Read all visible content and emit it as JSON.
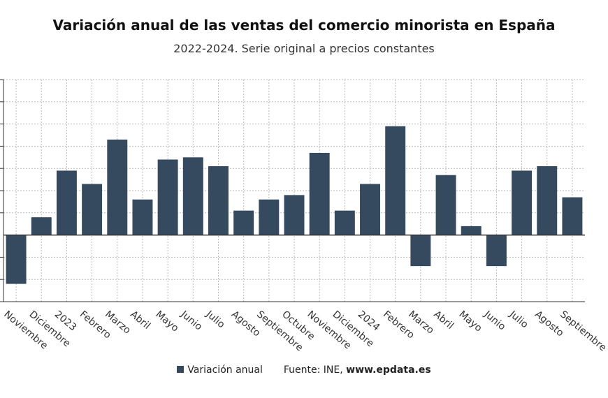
{
  "title": "Variación anual de las ventas del comercio minorista en España",
  "subtitle": "2022-2024. Serie original a precios constantes",
  "colors": {
    "bar": "#354a5f",
    "grid": "#bbbbbb",
    "axis": "#333333"
  },
  "legend": {
    "series_label": "Variación anual",
    "source_label": "Fuente: INE,",
    "source_site": "www.epdata.es"
  },
  "chart_data": {
    "type": "bar",
    "categories": [
      "Noviembre",
      "Diciembre",
      "2023",
      "Febrero",
      "Marzo",
      "Abril",
      "Mayo",
      "Junio",
      "Julio",
      "Agosto",
      "Septiembre",
      "Octubre",
      "Noviembre",
      "Diciembre",
      "2024",
      "Febrero",
      "Marzo",
      "Abril",
      "Mayo",
      "Junio",
      "Julio",
      "Agosto",
      "Septiembre"
    ],
    "series": [
      {
        "name": "Variación anual",
        "values": [
          -2.2,
          0.8,
          2.9,
          2.3,
          4.3,
          1.6,
          3.4,
          3.5,
          3.1,
          1.1,
          1.6,
          1.8,
          3.7,
          1.1,
          2.3,
          4.9,
          -1.4,
          2.7,
          0.4,
          -1.4,
          2.9,
          3.1,
          1.7
        ]
      }
    ],
    "ylim": [
      -3,
      7
    ],
    "y_tick_step": 1,
    "y_tick_labels_shown": false,
    "grid": true,
    "legend_position": "bottom"
  }
}
